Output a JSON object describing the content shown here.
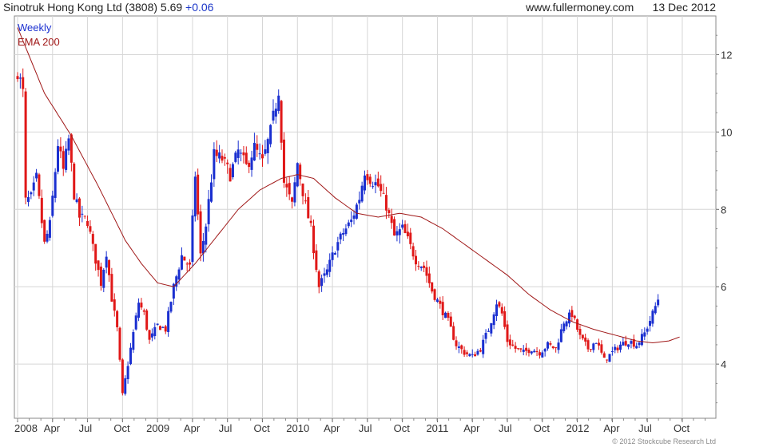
{
  "header": {
    "title": "Sinotruk Hong Kong Ltd (3808)",
    "price": "5.69",
    "change": "+0.06",
    "site": "www.fullermoney.com",
    "date": "13 Dec 2012"
  },
  "copyright": "© 2012 Stockcube Research Ltd",
  "colors": {
    "up": "#1a2fd0",
    "down": "#e01818",
    "ema": "#a01818",
    "grid": "#d6d6d6",
    "legend_weekly": "#1a2fd0",
    "legend_ema": "#a01818"
  },
  "chart_data": {
    "type": "candlestick",
    "legend": [
      "Weekly",
      "EMA 200"
    ],
    "y_ticks": [
      "4",
      "6",
      "8",
      "10",
      "12"
    ],
    "ylim": [
      2.6,
      13.0
    ],
    "x_ticks": [
      "2008",
      "Apr",
      "Jul",
      "Oct",
      "2009",
      "Apr",
      "Jul",
      "Oct",
      "2010",
      "Apr",
      "Jul",
      "Oct",
      "2011",
      "Apr",
      "Jul",
      "Oct",
      "2012",
      "Apr",
      "Jul",
      "Oct"
    ],
    "x_tick_weeks": [
      0,
      13,
      26,
      39,
      52,
      65,
      78,
      91,
      104,
      117,
      130,
      143,
      156,
      169,
      182,
      195,
      208,
      221,
      234,
      247
    ],
    "weeks_total": 259,
    "close_anchors": [
      [
        0,
        11.6
      ],
      [
        2,
        11.0
      ],
      [
        3,
        8.2
      ],
      [
        5,
        8.3
      ],
      [
        7,
        8.8
      ],
      [
        10,
        7.1
      ],
      [
        12,
        7.6
      ],
      [
        15,
        9.7
      ],
      [
        17,
        9.0
      ],
      [
        19,
        9.8
      ],
      [
        21,
        8.4
      ],
      [
        23,
        7.8
      ],
      [
        26,
        7.7
      ],
      [
        28,
        7.0
      ],
      [
        31,
        6.1
      ],
      [
        33,
        6.9
      ],
      [
        35,
        5.7
      ],
      [
        37,
        4.9
      ],
      [
        39,
        3.2
      ],
      [
        42,
        4.4
      ],
      [
        45,
        5.6
      ],
      [
        47,
        5.3
      ],
      [
        49,
        4.6
      ],
      [
        52,
        5.0
      ],
      [
        55,
        4.9
      ],
      [
        58,
        6.0
      ],
      [
        61,
        6.8
      ],
      [
        64,
        6.5
      ],
      [
        66,
        8.9
      ],
      [
        68,
        6.8
      ],
      [
        70,
        7.6
      ],
      [
        73,
        9.4
      ],
      [
        76,
        9.3
      ],
      [
        79,
        8.9
      ],
      [
        82,
        9.5
      ],
      [
        85,
        9.1
      ],
      [
        88,
        9.6
      ],
      [
        91,
        9.2
      ],
      [
        94,
        10.0
      ],
      [
        97,
        11.1
      ],
      [
        99,
        8.7
      ],
      [
        102,
        8.1
      ],
      [
        104,
        9.2
      ],
      [
        107,
        8.1
      ],
      [
        109,
        7.5
      ],
      [
        112,
        6.0
      ],
      [
        115,
        6.4
      ],
      [
        118,
        7.0
      ],
      [
        121,
        7.4
      ],
      [
        124,
        7.7
      ],
      [
        127,
        8.3
      ],
      [
        129,
        9.0
      ],
      [
        131,
        8.8
      ],
      [
        134,
        8.6
      ],
      [
        137,
        8.1
      ],
      [
        140,
        7.3
      ],
      [
        143,
        7.5
      ],
      [
        145,
        7.2
      ],
      [
        148,
        6.7
      ],
      [
        151,
        6.5
      ],
      [
        154,
        5.9
      ],
      [
        157,
        5.5
      ],
      [
        160,
        5.1
      ],
      [
        163,
        4.5
      ],
      [
        166,
        4.3
      ],
      [
        169,
        4.2
      ],
      [
        172,
        4.4
      ],
      [
        175,
        4.9
      ],
      [
        178,
        5.6
      ],
      [
        180,
        5.3
      ],
      [
        182,
        4.6
      ],
      [
        185,
        4.4
      ],
      [
        188,
        4.3
      ],
      [
        191,
        4.4
      ],
      [
        194,
        4.3
      ],
      [
        197,
        4.5
      ],
      [
        200,
        4.4
      ],
      [
        203,
        5.1
      ],
      [
        206,
        5.3
      ],
      [
        209,
        4.7
      ],
      [
        212,
        4.4
      ],
      [
        215,
        4.6
      ],
      [
        218,
        4.1
      ],
      [
        221,
        4.3
      ],
      [
        224,
        4.5
      ],
      [
        227,
        4.6
      ],
      [
        230,
        4.5
      ],
      [
        233,
        4.8
      ],
      [
        236,
        5.3
      ],
      [
        238,
        5.69
      ]
    ],
    "ema_anchors": [
      [
        0,
        12.7
      ],
      [
        10,
        11.0
      ],
      [
        20,
        9.9
      ],
      [
        30,
        8.6
      ],
      [
        40,
        7.2
      ],
      [
        46,
        6.6
      ],
      [
        52,
        6.1
      ],
      [
        58,
        6.0
      ],
      [
        66,
        6.6
      ],
      [
        74,
        7.3
      ],
      [
        82,
        8.0
      ],
      [
        90,
        8.5
      ],
      [
        98,
        8.8
      ],
      [
        104,
        8.9
      ],
      [
        110,
        8.8
      ],
      [
        118,
        8.3
      ],
      [
        126,
        7.9
      ],
      [
        134,
        7.8
      ],
      [
        142,
        7.9
      ],
      [
        150,
        7.8
      ],
      [
        158,
        7.5
      ],
      [
        166,
        7.1
      ],
      [
        174,
        6.7
      ],
      [
        182,
        6.3
      ],
      [
        190,
        5.8
      ],
      [
        198,
        5.4
      ],
      [
        206,
        5.1
      ],
      [
        214,
        4.9
      ],
      [
        222,
        4.75
      ],
      [
        230,
        4.6
      ],
      [
        236,
        4.55
      ],
      [
        242,
        4.6
      ],
      [
        246,
        4.7
      ]
    ]
  }
}
